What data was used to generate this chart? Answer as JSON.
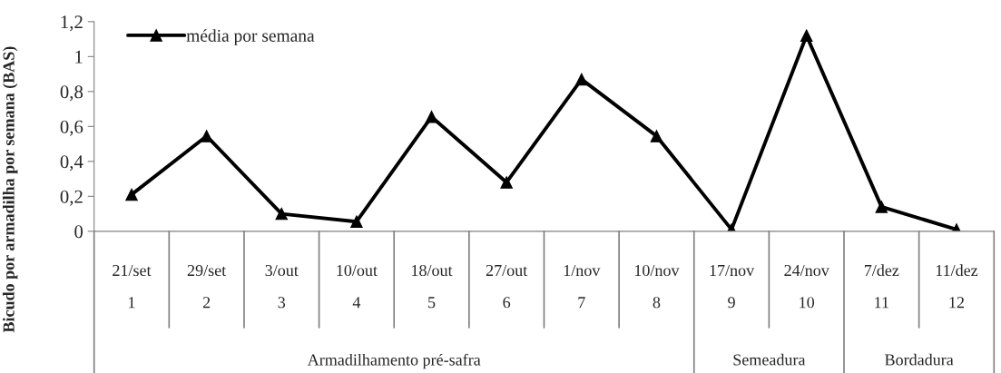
{
  "chart_data": {
    "type": "line",
    "ylabel": "Bicudo por armadilha por semana (BAS)",
    "categories": [
      "21/set\n\n1",
      "29/set\n\n2",
      "3/out\n\n3",
      "10/out\n\n4",
      "18/out\n\n5",
      "27/out\n\n6",
      "1/nov\n\n7",
      "10/nov\n\n8",
      "17/nov\n\n9",
      "24/nov\n\n10",
      "7/dez\n\n11",
      "11/dez\n\n12"
    ],
    "series": [
      {
        "name": "média por semana",
        "color": "#000000",
        "values": [
          0.21,
          0.545,
          0.1,
          0.055,
          0.655,
          0.28,
          0.87,
          0.545,
          0.01,
          1.12,
          0.14,
          0.01
        ]
      }
    ],
    "ylim": [
      0,
      1.2
    ],
    "yticks": [
      0,
      {
        "value": 0.2,
        "label": "0,2"
      },
      {
        "value": 0.4,
        "label": "0,4"
      },
      {
        "value": 0.6,
        "label": "0,6"
      },
      {
        "value": 0.8,
        "label": "0,8"
      },
      1,
      {
        "value": 1.2,
        "label": "1,2"
      }
    ],
    "annotations": [
      "Armadilhamento pré-safra",
      "Semeadura",
      "Bordadura"
    ],
    "marker": "triangle",
    "line_style": "solid",
    "legend": "top left",
    "grid": false
  }
}
